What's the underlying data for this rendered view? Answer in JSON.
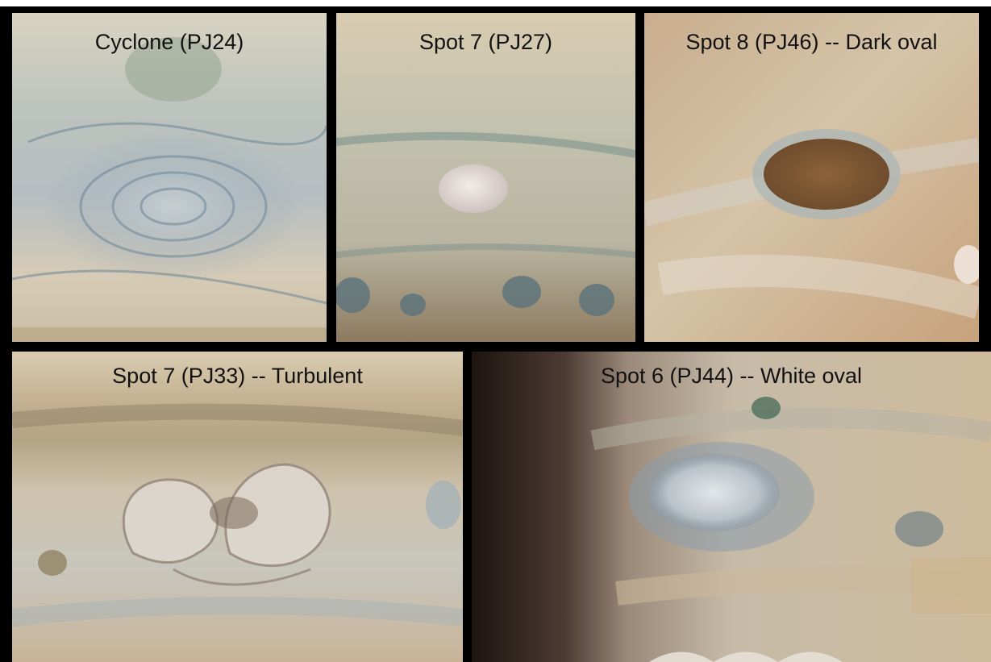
{
  "header": {
    "partial_title": ""
  },
  "panels": [
    {
      "label": "Cyclone (PJ24)"
    },
    {
      "label": "Spot 7 (PJ27)"
    },
    {
      "label": "Spot 8 (PJ46) -- Dark oval"
    },
    {
      "label": "Spot 7 (PJ33) -- Turbulent"
    },
    {
      "label": "Spot 6 (PJ44) -- White oval"
    }
  ],
  "colors": {
    "frame": "#000000",
    "cloud_base": "#cdbfa6",
    "dark_oval": "#7a5534",
    "blue_gray": "#5d7586"
  }
}
